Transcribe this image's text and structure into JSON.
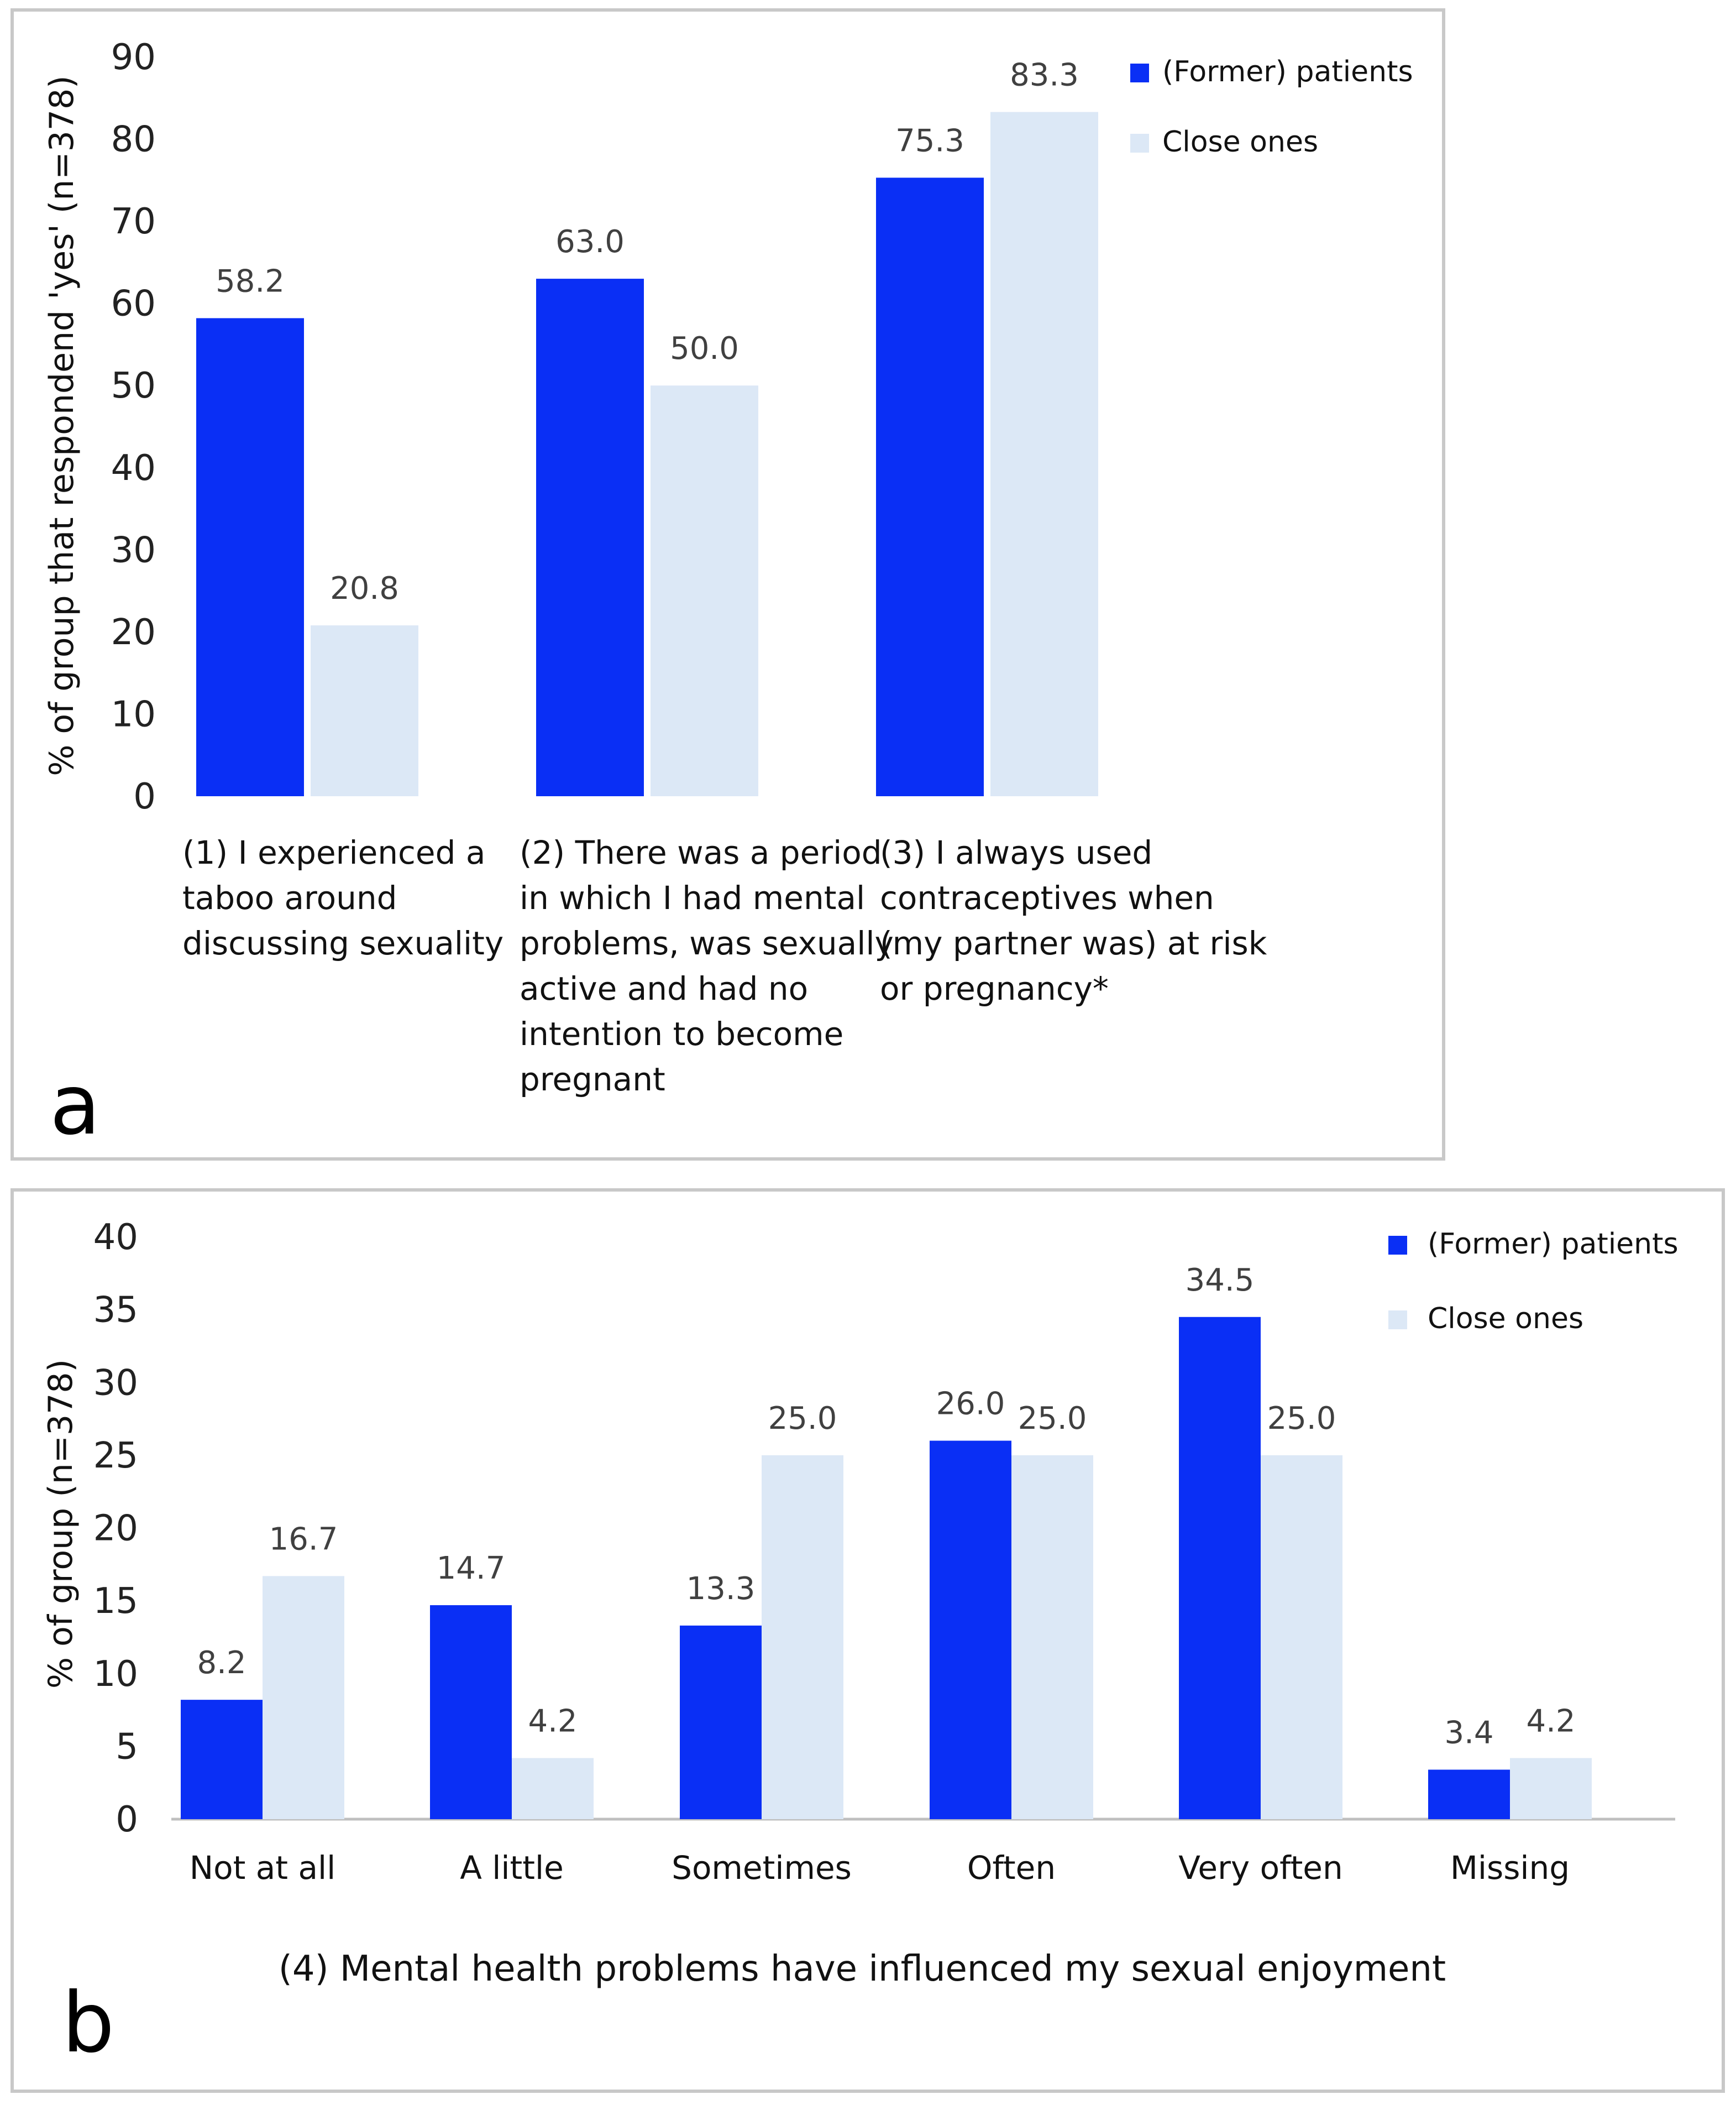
{
  "colors": {
    "patients": "#0a2ff5",
    "close_ones": "#dce8f6",
    "frame": "#c8c8c8",
    "axis": "#bfbfbf"
  },
  "legend": {
    "patients": "(Former) patients",
    "close_ones": "Close ones"
  },
  "chart_data": [
    {
      "type": "bar",
      "panel": "a",
      "ylabel": "% of group that respondend 'yes' (n=378)",
      "ylim": [
        0,
        90
      ],
      "yticks": [
        0,
        10,
        20,
        30,
        40,
        50,
        60,
        70,
        80,
        90
      ],
      "grid": false,
      "legend_position": "top-right",
      "categories": [
        [
          "(1) I experienced a",
          "taboo around",
          "discussing sexuality"
        ],
        [
          "(2) There was a period",
          "in which I had mental",
          "problems, was sexually",
          "active and had no",
          "intention to become",
          "pregnant"
        ],
        [
          "(3) I always used",
          "contraceptives when",
          "(my partner was) at risk",
          "or pregnancy*"
        ]
      ],
      "series": [
        {
          "name": "(Former) patients",
          "values": [
            58.2,
            63.0,
            75.3
          ],
          "labels": [
            "58.2",
            "63.0",
            "75.3"
          ]
        },
        {
          "name": "Close ones",
          "values": [
            20.8,
            50.0,
            83.3
          ],
          "labels": [
            "20.8",
            "50.0",
            "83.3"
          ]
        }
      ]
    },
    {
      "type": "bar",
      "panel": "b",
      "ylabel": "% of group (n=378)",
      "xlabel": "(4) Mental health problems have influenced my sexual enjoyment",
      "ylim": [
        0,
        40
      ],
      "yticks": [
        0,
        5,
        10,
        15,
        20,
        25,
        30,
        35,
        40
      ],
      "grid": false,
      "legend_position": "top-right",
      "categories": [
        "Not at all",
        "A little",
        "Sometimes",
        "Often",
        "Very often",
        "Missing"
      ],
      "series": [
        {
          "name": "(Former) patients",
          "values": [
            8.2,
            14.7,
            13.3,
            26.0,
            34.5,
            3.4
          ],
          "labels": [
            "8.2",
            "14.7",
            "13.3",
            "26.0",
            "34.5",
            "3.4"
          ]
        },
        {
          "name": "Close ones",
          "values": [
            16.7,
            4.2,
            25.0,
            25.0,
            25.0,
            4.2
          ],
          "labels": [
            "16.7",
            "4.2",
            "25.0",
            "25.0",
            "25.0",
            "4.2"
          ]
        }
      ]
    }
  ]
}
